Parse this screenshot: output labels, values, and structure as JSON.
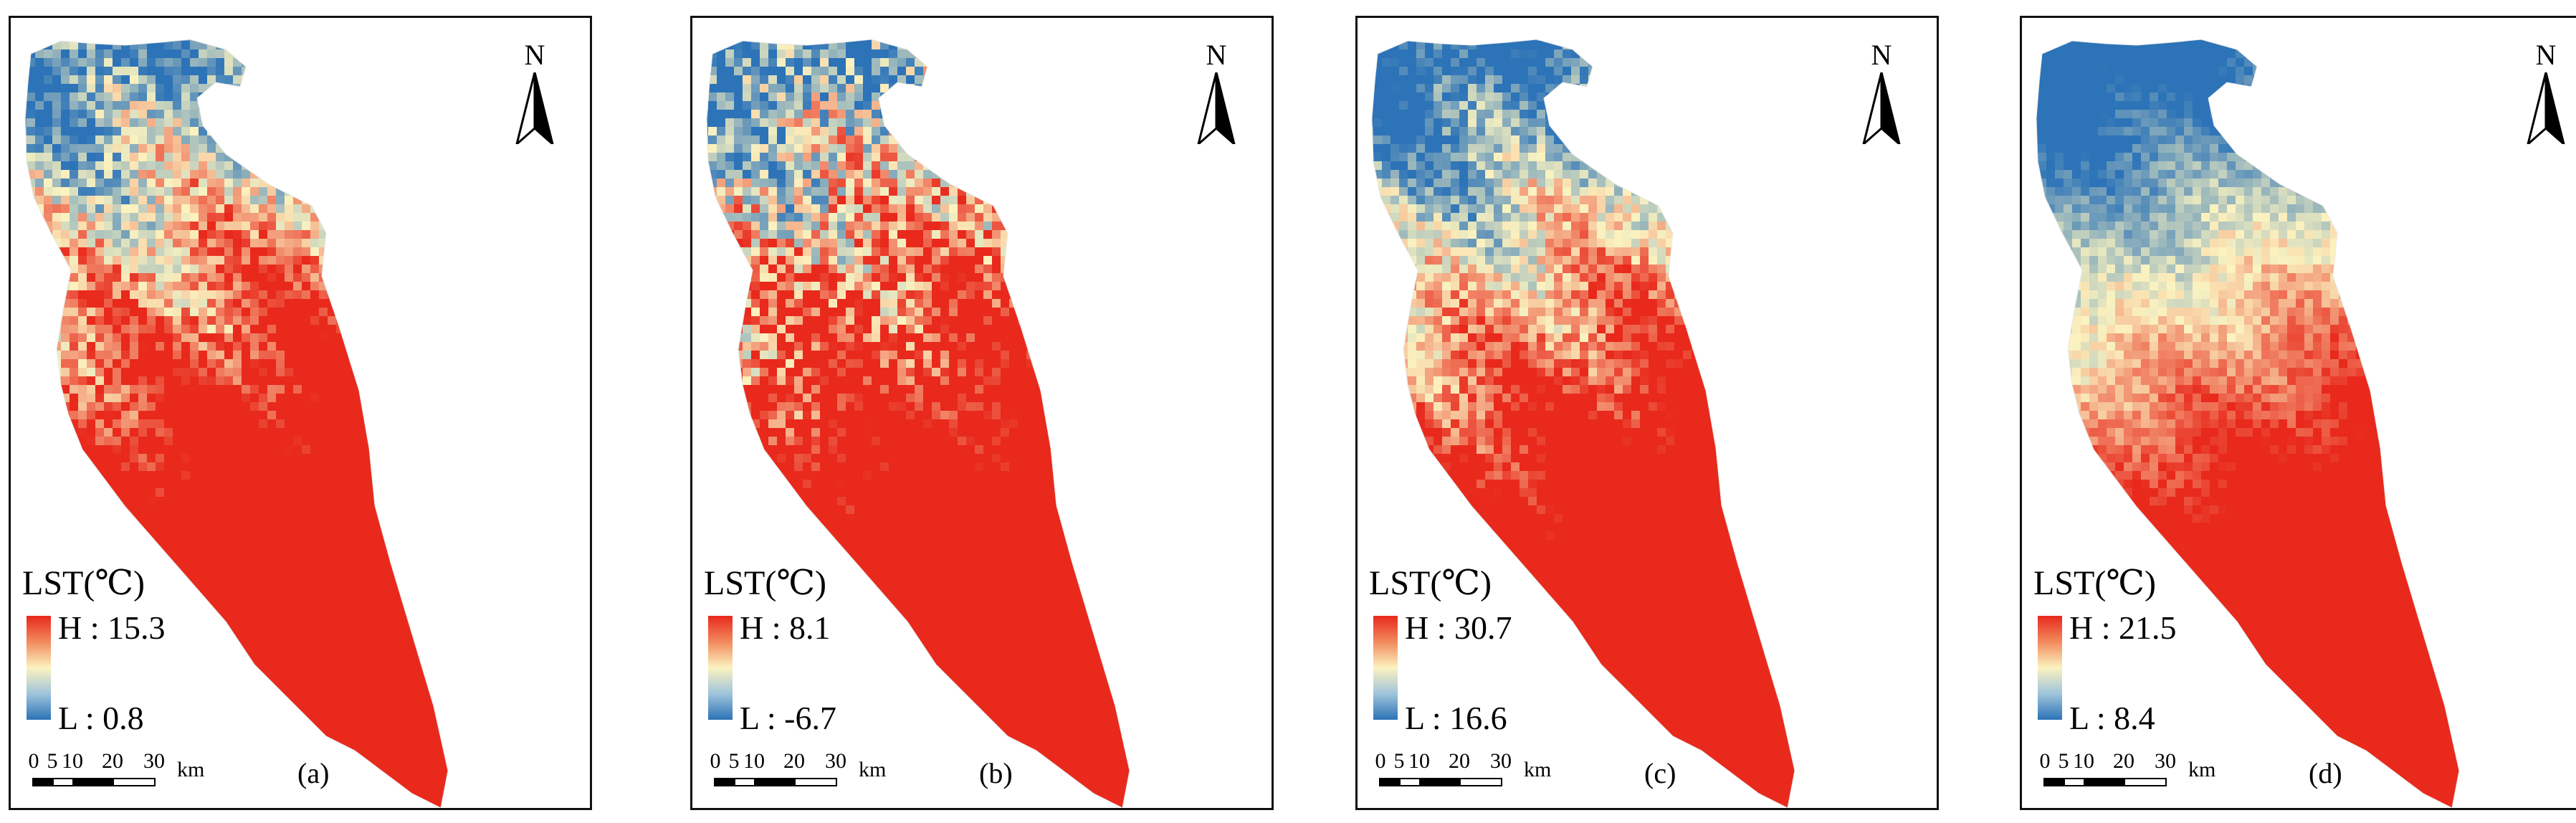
{
  "figure": {
    "colors": {
      "high": "#e8291c",
      "mid": "#fbf3c0",
      "low": "#2c73b8"
    },
    "north_label": "N",
    "scale_labels": [
      "0",
      "5",
      "10",
      "20",
      "30"
    ],
    "scale_unit": "km",
    "legend_title": "LST(℃)",
    "panels": [
      {
        "caption": "(a)",
        "high_label": "H : 15.3",
        "low_label": "L : 0.8",
        "high": 15.3,
        "low": 0.8
      },
      {
        "caption": "(b)",
        "high_label": "H : 8.1",
        "low_label": "L : -6.7",
        "high": 8.1,
        "low": -6.7
      },
      {
        "caption": "(c)",
        "high_label": "H : 30.7",
        "low_label": "L : 16.6",
        "high": 30.7,
        "low": 16.6
      },
      {
        "caption": "(d)",
        "high_label": "H : 21.5",
        "low_label": "L : 8.4",
        "high": 21.5,
        "low": 8.4
      }
    ]
  }
}
